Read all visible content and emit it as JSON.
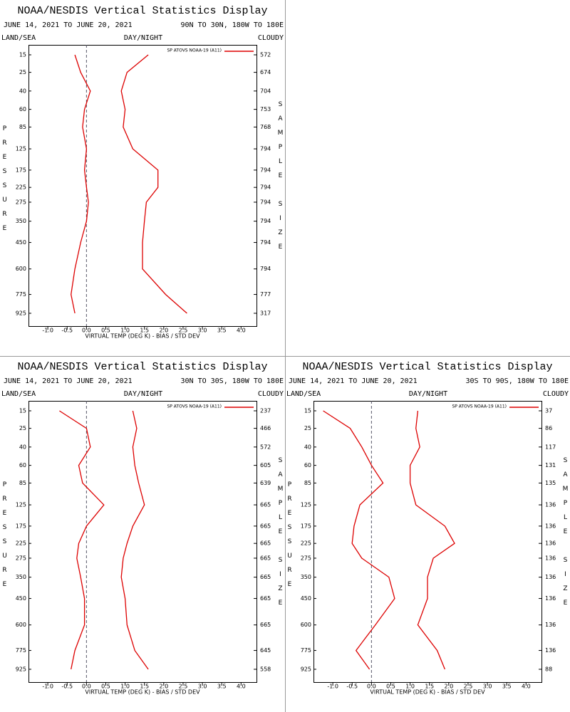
{
  "chart_data": [
    {
      "type": "line",
      "title": "NOAA/NESDIS Vertical Statistics Display",
      "subtitle": "JUNE 14, 2021 TO JUNE 20, 2021",
      "region": "90N TO 30N, 180W TO 180E",
      "land_sea": "LAND/SEA",
      "day_night": "DAY/NIGHT",
      "cloudy": "CLOUDY",
      "ylabel": "PRESSURE",
      "y2label": "SAMPLE SIZE",
      "xlabel": "VIRTUAL TEMP (DEG K) - BIAS / STD DEV",
      "legend": "SP ATOVS NOAA-19 (A11)",
      "categories": [
        15,
        25,
        40,
        60,
        85,
        125,
        175,
        225,
        275,
        350,
        450,
        600,
        775,
        925
      ],
      "sample_size": [
        572,
        674,
        704,
        753,
        768,
        794,
        794,
        794,
        794,
        794,
        794,
        794,
        777,
        317
      ],
      "series": [
        {
          "color": "#dd0000",
          "values": [
            -0.3,
            -0.15,
            0.1,
            -0.05,
            -0.1,
            0.0,
            -0.05,
            0.0,
            0.05,
            0.0,
            -0.15,
            -0.3,
            -0.4,
            -0.3
          ]
        },
        {
          "color": "#dd0000",
          "values": [
            1.6,
            1.05,
            0.9,
            1.0,
            0.95,
            1.2,
            1.85,
            1.85,
            1.55,
            1.5,
            1.45,
            1.45,
            2.05,
            2.6
          ]
        }
      ],
      "xlim": [
        -1.5,
        4.4
      ],
      "xticks": [
        {
          "value": -1,
          "label": "-1.0"
        },
        -0.5,
        {
          "value": 0,
          "label": "0.0"
        },
        0.5,
        {
          "value": 1,
          "label": "1.0"
        },
        1.5,
        {
          "value": 2,
          "label": "2.0"
        },
        2.5,
        {
          "value": 3,
          "label": "3.0"
        },
        3.5,
        {
          "value": 4,
          "label": "4.0"
        }
      ]
    },
    {
      "type": "line",
      "title": "NOAA/NESDIS Vertical Statistics Display",
      "subtitle": "JUNE 14, 2021 TO JUNE 20, 2021",
      "region": "30N TO 30S, 180W TO 180E",
      "land_sea": "LAND/SEA",
      "day_night": "DAY/NIGHT",
      "cloudy": "CLOUDY",
      "ylabel": "PRESSURE",
      "y2label": "SAMPLE SIZE",
      "xlabel": "VIRTUAL TEMP (DEG K) - BIAS / STD DEV",
      "legend": "SP ATOVS NOAA-19 (A11)",
      "categories": [
        15,
        25,
        40,
        60,
        85,
        125,
        175,
        225,
        275,
        350,
        450,
        600,
        775,
        925
      ],
      "sample_size": [
        237,
        466,
        572,
        605,
        639,
        665,
        665,
        665,
        665,
        665,
        665,
        665,
        645,
        558
      ],
      "series": [
        {
          "color": "#dd0000",
          "values": [
            -0.7,
            0.0,
            0.1,
            -0.2,
            -0.1,
            0.45,
            0.0,
            -0.2,
            -0.25,
            -0.15,
            -0.05,
            -0.05,
            -0.3,
            -0.4
          ]
        },
        {
          "color": "#dd0000",
          "values": [
            1.2,
            1.3,
            1.2,
            1.25,
            1.35,
            1.5,
            1.2,
            1.05,
            0.95,
            0.9,
            1.0,
            1.05,
            1.25,
            1.6
          ]
        }
      ],
      "xlim": [
        -1.5,
        4.4
      ],
      "xticks": [
        {
          "value": -1,
          "label": "-1.0"
        },
        -0.5,
        {
          "value": 0,
          "label": "0.0"
        },
        0.5,
        {
          "value": 1,
          "label": "1.0"
        },
        1.5,
        {
          "value": 2,
          "label": "2.0"
        },
        2.5,
        {
          "value": 3,
          "label": "3.0"
        },
        3.5,
        {
          "value": 4,
          "label": "4.0"
        }
      ]
    },
    {
      "type": "line",
      "title": "NOAA/NESDIS Vertical Statistics Display",
      "subtitle": "JUNE 14, 2021 TO JUNE 20, 2021",
      "region": "30S TO 90S, 180W TO 180E",
      "land_sea": "LAND/SEA",
      "day_night": "DAY/NIGHT",
      "cloudy": "CLOUDY",
      "ylabel": "PRESSURE",
      "y2label": "SAMPLE SIZE",
      "xlabel": "VIRTUAL TEMP (DEG K) - BIAS / STD DEV",
      "legend": "SP ATOVS NOAA-19 (A11)",
      "categories": [
        15,
        25,
        40,
        60,
        85,
        125,
        175,
        225,
        275,
        350,
        450,
        600,
        775,
        925
      ],
      "sample_size": [
        37,
        86,
        117,
        131,
        135,
        136,
        136,
        136,
        136,
        136,
        136,
        136,
        136,
        88
      ],
      "series": [
        {
          "color": "#dd0000",
          "values": [
            -1.25,
            -0.55,
            -0.25,
            0.0,
            0.3,
            -0.3,
            -0.45,
            -0.5,
            -0.25,
            0.45,
            0.6,
            0.1,
            -0.4,
            -0.05
          ]
        },
        {
          "color": "#dd0000",
          "values": [
            1.2,
            1.15,
            1.25,
            1.0,
            1.0,
            1.15,
            1.9,
            2.15,
            1.6,
            1.45,
            1.45,
            1.2,
            1.7,
            1.9
          ]
        }
      ],
      "xlim": [
        -1.5,
        4.4
      ],
      "xticks": [
        {
          "value": -1,
          "label": "-1.0"
        },
        -0.5,
        {
          "value": 0,
          "label": "0.0"
        },
        0.5,
        {
          "value": 1,
          "label": "1.0"
        },
        1.5,
        {
          "value": 2,
          "label": "2.0"
        },
        2.5,
        {
          "value": 3,
          "label": "3.0"
        },
        3.5,
        {
          "value": 4,
          "label": "4.0"
        }
      ]
    }
  ]
}
